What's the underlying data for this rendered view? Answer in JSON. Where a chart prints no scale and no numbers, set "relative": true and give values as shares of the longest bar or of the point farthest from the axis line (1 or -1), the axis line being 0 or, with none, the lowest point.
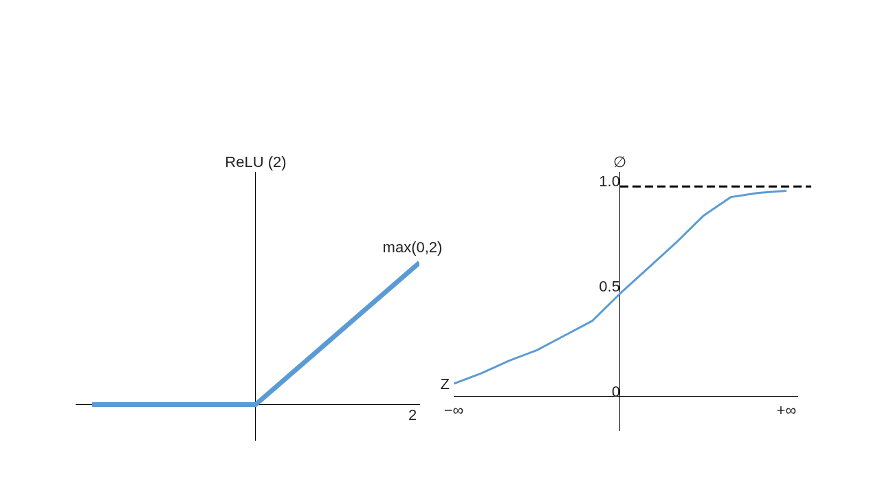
{
  "chart_data": [
    {
      "type": "line",
      "relative": true,
      "ylabel": "ReLU (2)",
      "xlabel": "2",
      "annotations": [
        "max(0,2)"
      ],
      "categories": [
        null,
        null,
        null
      ],
      "series": [
        {
          "color": "#5b9bd5",
          "values": [
            0,
            0,
            1
          ]
        }
      ],
      "grid": false,
      "legend": false,
      "marker": "none"
    },
    {
      "type": "line",
      "ylabel": "∅",
      "xlabel": "Z",
      "categories": [
        "−∞",
        null,
        null,
        null,
        null,
        null,
        null,
        null,
        null,
        null,
        null,
        null,
        "+∞"
      ],
      "series": [
        {
          "color": "#5b9bd5",
          "values": [
            0.06,
            0.11,
            0.17,
            0.22,
            0.29,
            0.36,
            0.49,
            0.61,
            0.73,
            0.86,
            0.95,
            0.97,
            0.98
          ]
        }
      ],
      "ylim": [
        -0.165,
        1.07
      ],
      "yticks": [
        0,
        0.5,
        {
          "value": 1,
          "label": "1.0"
        }
      ],
      "ref_lines": [
        {
          "axis": "y",
          "value": 1,
          "color": "#000000",
          "line_style": "dashed"
        }
      ],
      "grid": false,
      "legend": false,
      "marker": "none"
    }
  ]
}
